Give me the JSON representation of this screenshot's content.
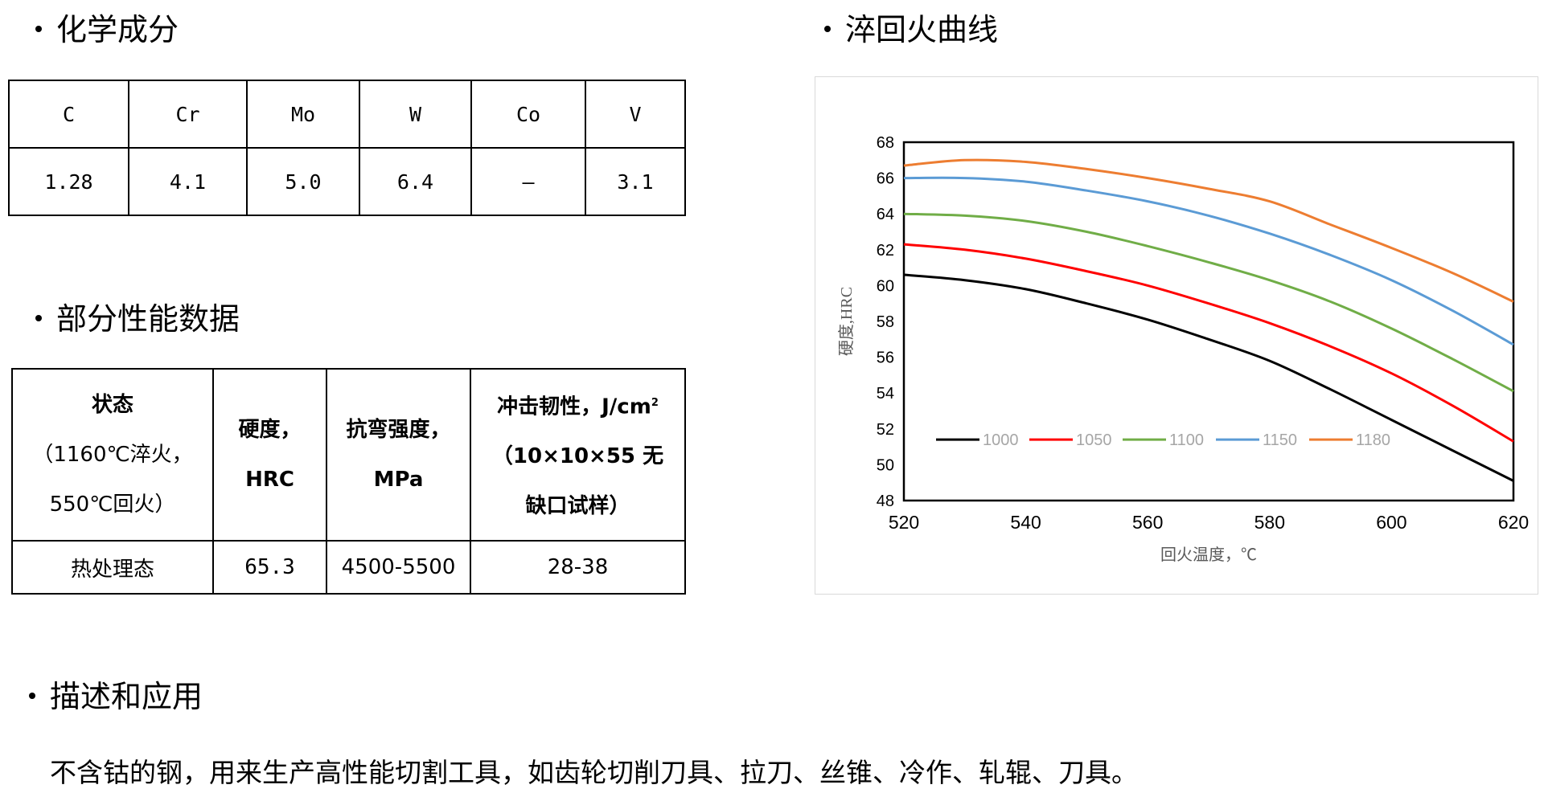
{
  "headings": {
    "chemistry": "化学成分",
    "quench_curve": "淬回火曲线",
    "properties": "部分性能数据",
    "description": "描述和应用"
  },
  "chemistry": {
    "elements": [
      "C",
      "Cr",
      "Mo",
      "W",
      "Co",
      "V"
    ],
    "values": [
      "1.28",
      "4.1",
      "5.0",
      "6.4",
      "—",
      "3.1"
    ]
  },
  "properties": {
    "headers": {
      "state": [
        "状态",
        "（1160℃淬火，",
        "550℃回火）"
      ],
      "hardness": [
        "硬度，",
        "HRC"
      ],
      "bending": [
        "抗弯强度，",
        "MPa"
      ],
      "impact_main": "冲击韧性，J/cm",
      "impact_sup": "2",
      "impact_rest": [
        "（10×10×55 无",
        "缺口试样）"
      ]
    },
    "row": {
      "state": "热处理态",
      "hardness": "65.3",
      "bending": "4500-5500",
      "impact": "28-38"
    }
  },
  "description": {
    "text": "不含钴的钢，用来生产高性能切割工具，如齿轮切削刀具、拉刀、丝锥、冷作、轧辊、刀具。"
  },
  "chart_data": {
    "type": "line",
    "title": "",
    "xlabel": "回火温度，℃",
    "ylabel": "硬度,HRC",
    "xlim": [
      520,
      620
    ],
    "ylim": [
      48,
      68
    ],
    "x_ticks": [
      520,
      540,
      560,
      580,
      600,
      620
    ],
    "y_ticks": [
      48,
      50,
      52,
      54,
      56,
      58,
      60,
      62,
      64,
      66,
      68
    ],
    "grid": false,
    "legend_position": "bottom-left inside",
    "x": [
      520,
      530,
      540,
      550,
      560,
      570,
      580,
      590,
      600,
      610,
      620
    ],
    "series": [
      {
        "name": "1000",
        "color": "#000000",
        "values": [
          60.6,
          60.3,
          59.8,
          59.0,
          58.1,
          57.0,
          55.8,
          54.2,
          52.5,
          50.8,
          49.1
        ]
      },
      {
        "name": "1050",
        "color": "#ff0000",
        "values": [
          62.3,
          62.0,
          61.5,
          60.8,
          60.0,
          59.0,
          57.9,
          56.6,
          55.1,
          53.3,
          51.3
        ]
      },
      {
        "name": "1100",
        "color": "#70ad47",
        "values": [
          64.0,
          63.9,
          63.6,
          63.0,
          62.2,
          61.3,
          60.3,
          59.1,
          57.6,
          55.9,
          54.1
        ]
      },
      {
        "name": "1150",
        "color": "#5b9bd5",
        "values": [
          66.0,
          66.0,
          65.8,
          65.3,
          64.7,
          63.9,
          62.9,
          61.7,
          60.3,
          58.6,
          56.7
        ]
      },
      {
        "name": "1180",
        "color": "#ed7d31",
        "values": [
          66.7,
          67.0,
          66.9,
          66.5,
          66.0,
          65.4,
          64.7,
          63.4,
          62.1,
          60.7,
          59.1
        ]
      }
    ]
  }
}
